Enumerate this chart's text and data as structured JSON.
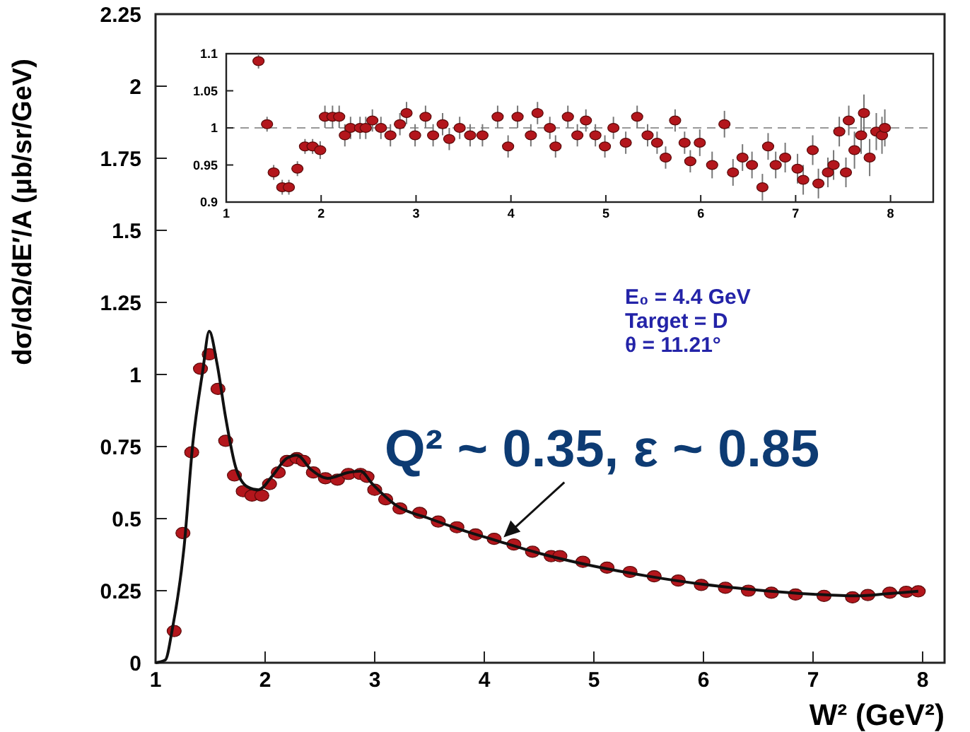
{
  "chart_data": [
    {
      "type": "scatter",
      "xlabel": "W² (GeV²)",
      "ylabel": "dσ/dΩ/dE′/A (μb/sr/GeV)",
      "xlim": [
        1,
        8.2
      ],
      "ylim": [
        0,
        2.25
      ],
      "xticks": [
        1,
        2,
        3,
        4,
        5,
        6,
        7,
        8
      ],
      "yticks": [
        0,
        0.25,
        0.5,
        0.75,
        1,
        1.25,
        1.5,
        1.75,
        2,
        2.25
      ],
      "grid": false,
      "annotations": [
        "E₀  = 4.4  GeV",
        "Target = D",
        "θ = 11.21°",
        {
          "text": "Q² ~ 0.35, ε ~ 0.85",
          "x": 4.15,
          "y": 0.43
        }
      ],
      "series": [
        {
          "marker": "circle",
          "color": "#b3161c",
          "x": [
            1.17,
            1.25,
            1.33,
            1.41,
            1.49,
            1.57,
            1.64,
            1.72,
            1.8,
            1.88,
            1.97,
            2.04,
            2.12,
            2.2,
            2.29,
            2.35,
            2.44,
            2.55,
            2.66,
            2.76,
            2.87,
            2.93,
            3.0,
            3.1,
            3.23,
            3.41,
            3.58,
            3.75,
            3.92,
            4.09,
            4.27,
            4.44,
            4.61,
            4.69,
            4.9,
            5.12,
            5.33,
            5.55,
            5.77,
            5.98,
            6.2,
            6.41,
            6.62,
            6.84,
            7.1,
            7.36,
            7.5,
            7.7,
            7.85,
            7.96
          ],
          "values": [
            0.11,
            0.45,
            0.73,
            1.02,
            1.07,
            0.95,
            0.77,
            0.65,
            0.595,
            0.58,
            0.58,
            0.62,
            0.66,
            0.7,
            0.71,
            0.7,
            0.66,
            0.64,
            0.635,
            0.655,
            0.655,
            0.645,
            0.6,
            0.567,
            0.535,
            0.52,
            0.49,
            0.47,
            0.445,
            0.43,
            0.41,
            0.385,
            0.37,
            0.37,
            0.35,
            0.33,
            0.315,
            0.3,
            0.285,
            0.27,
            0.26,
            0.25,
            0.243,
            0.237,
            0.232,
            0.227,
            0.235,
            0.243,
            0.246,
            0.248
          ]
        },
        {
          "type": "line",
          "marker": "none",
          "color": "#111111",
          "x": [
            1.0,
            1.09,
            1.15,
            1.26,
            1.34,
            1.43,
            1.49,
            1.56,
            1.64,
            1.73,
            1.84,
            1.94,
            2.07,
            2.2,
            2.29,
            2.42,
            2.57,
            2.76,
            2.87,
            2.98,
            3.2,
            3.5,
            3.8,
            4.1,
            4.5,
            5.0,
            5.5,
            6.0,
            6.5,
            7.0,
            7.4,
            7.7,
            7.96
          ],
          "values": [
            0,
            0.01,
            0.11,
            0.4,
            0.76,
            1.01,
            1.15,
            1.04,
            0.85,
            0.68,
            0.61,
            0.6,
            0.65,
            0.71,
            0.72,
            0.67,
            0.64,
            0.66,
            0.665,
            0.62,
            0.545,
            0.5,
            0.46,
            0.425,
            0.38,
            0.335,
            0.3,
            0.272,
            0.252,
            0.238,
            0.232,
            0.24,
            0.248
          ]
        }
      ]
    },
    {
      "type": "scatter",
      "xlim": [
        1,
        8.45
      ],
      "ylim": [
        0.9,
        1.1
      ],
      "xticks": [
        1,
        2,
        3,
        4,
        5,
        6,
        7,
        8
      ],
      "yticks": [
        0.9,
        0.95,
        1,
        1.05,
        1.1
      ],
      "marker": "circle",
      "grid": false,
      "ref_lines": [
        {
          "axis": "y",
          "value": 1,
          "color": "#999999",
          "line_style": "dashed"
        }
      ],
      "series": [
        {
          "color": "#b3161c",
          "x": [
            1.34,
            1.43,
            1.5,
            1.59,
            1.66,
            1.75,
            1.83,
            1.91,
            1.99,
            2.04,
            2.12,
            2.19,
            2.25,
            2.31,
            2.41,
            2.47,
            2.54,
            2.63,
            2.73,
            2.83,
            2.9,
            2.99,
            3.1,
            3.18,
            3.28,
            3.35,
            3.46,
            3.57,
            3.7,
            3.86,
            3.97,
            4.07,
            4.21,
            4.28,
            4.41,
            4.47,
            4.6,
            4.7,
            4.79,
            4.89,
            4.99,
            5.08,
            5.21,
            5.33,
            5.44,
            5.54,
            5.63,
            5.73,
            5.83,
            5.89,
            5.99,
            6.12,
            6.25,
            6.34,
            6.44,
            6.54,
            6.65,
            6.71,
            6.79,
            6.89,
            7.02,
            7.08,
            7.18,
            7.24,
            7.34,
            7.4,
            7.46,
            7.53,
            7.56,
            7.62,
            7.69,
            7.72,
            7.78,
            7.85,
            7.91,
            7.94
          ],
          "values": [
            1.09,
            1.005,
            0.94,
            0.92,
            0.92,
            0.945,
            0.975,
            0.975,
            0.97,
            1.015,
            1.015,
            1.015,
            0.99,
            1.0,
            1.0,
            1.0,
            1.01,
            1.0,
            0.99,
            1.005,
            1.02,
            0.99,
            1.015,
            0.99,
            1.005,
            0.985,
            1.0,
            0.99,
            0.99,
            1.015,
            0.975,
            1.015,
            0.99,
            1.02,
            1.0,
            0.975,
            1.015,
            0.99,
            1.01,
            0.99,
            0.975,
            1.0,
            0.98,
            1.015,
            0.99,
            0.98,
            0.96,
            1.01,
            0.98,
            0.955,
            0.98,
            0.95,
            1.005,
            0.94,
            0.96,
            0.95,
            0.92,
            0.975,
            0.95,
            0.96,
            0.945,
            0.93,
            0.97,
            0.925,
            0.94,
            0.95,
            0.995,
            0.94,
            1.01,
            0.97,
            0.99,
            1.02,
            0.96,
            0.995,
            0.99,
            1.0
          ],
          "errors": [
            0.01,
            0.01,
            0.01,
            0.01,
            0.01,
            0.01,
            0.01,
            0.01,
            0.012,
            0.015,
            0.015,
            0.015,
            0.015,
            0.015,
            0.015,
            0.015,
            0.015,
            0.015,
            0.015,
            0.015,
            0.015,
            0.015,
            0.015,
            0.015,
            0.015,
            0.015,
            0.015,
            0.015,
            0.015,
            0.015,
            0.015,
            0.015,
            0.015,
            0.015,
            0.015,
            0.015,
            0.015,
            0.015,
            0.015,
            0.015,
            0.015,
            0.015,
            0.015,
            0.015,
            0.015,
            0.015,
            0.015,
            0.015,
            0.015,
            0.015,
            0.018,
            0.018,
            0.018,
            0.018,
            0.018,
            0.018,
            0.018,
            0.018,
            0.018,
            0.02,
            0.02,
            0.02,
            0.02,
            0.02,
            0.02,
            0.02,
            0.02,
            0.02,
            0.02,
            0.025,
            0.025,
            0.025,
            0.025,
            0.025,
            0.025,
            0.025
          ]
        }
      ]
    }
  ]
}
